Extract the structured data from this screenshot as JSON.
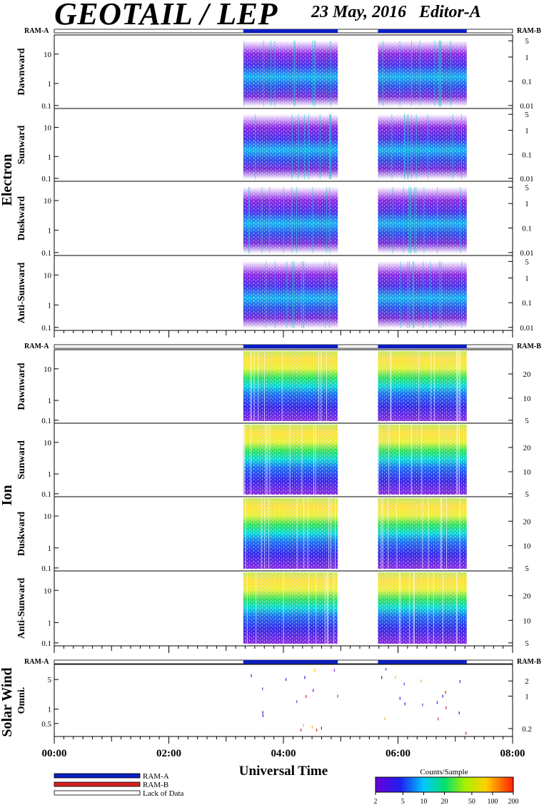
{
  "header": {
    "title": "GEOTAIL / LEP",
    "date": "23 May, 2016",
    "editor": "Editor-A"
  },
  "ram_labels": {
    "left": "RAM-A",
    "right": "RAM-B"
  },
  "time_axis": {
    "label": "Universal Time",
    "ticks": [
      "00:00",
      "02:00",
      "04:00",
      "06:00",
      "08:00"
    ],
    "range_hours": [
      0,
      8
    ]
  },
  "data_coverage_hours": [
    [
      3.3,
      4.95
    ],
    [
      5.65,
      7.2
    ]
  ],
  "groups": [
    {
      "name": "Electron",
      "panels": [
        "Dawnward",
        "Sunward",
        "Duskward",
        "Anti-Sunward"
      ],
      "left_ticks": [
        "10",
        "1",
        "0.1"
      ],
      "right_ticks": [
        "5",
        "1",
        "0.1",
        "0.01"
      ]
    },
    {
      "name": "Ion",
      "panels": [
        "Dawnward",
        "Sunward",
        "Duskward",
        "Anti-Sunward"
      ],
      "left_ticks": [
        "10",
        "1",
        "0.1"
      ],
      "right_ticks": [
        "20",
        "10",
        "5"
      ]
    },
    {
      "name": "Solar Wind",
      "panels": [
        "Omni."
      ],
      "left_ticks": [
        "5",
        "1",
        "0.5"
      ],
      "right_ticks": [
        "2",
        "1",
        "0.2"
      ]
    }
  ],
  "legend": {
    "items": [
      {
        "label": "RAM-A",
        "color": "#0b1fc2"
      },
      {
        "label": "RAM-B",
        "color": "#d42020"
      },
      {
        "label": "Lack of Data",
        "color": "#ffffff"
      }
    ]
  },
  "colorbar": {
    "title": "Counts/Sample",
    "ticks": [
      "2",
      "5",
      "10",
      "20",
      "50",
      "100",
      "200"
    ],
    "tick_values": [
      2,
      5,
      10,
      20,
      50,
      100,
      200
    ],
    "range": [
      2,
      200
    ]
  },
  "chart_data": {
    "type": "heatmap",
    "title": "GEOTAIL / LEP",
    "xlabel": "Universal Time",
    "xlim": [
      "00:00",
      "08:00"
    ],
    "scale": "log",
    "colorbar_label": "Counts/Sample",
    "series": [
      {
        "name": "Electron Dawnward",
        "coverage": [
          [
            "03:18",
            "04:57"
          ],
          [
            "05:39",
            "07:12"
          ]
        ]
      },
      {
        "name": "Electron Sunward",
        "coverage": [
          [
            "03:18",
            "04:57"
          ],
          [
            "05:39",
            "07:12"
          ]
        ]
      },
      {
        "name": "Electron Duskward",
        "coverage": [
          [
            "03:18",
            "04:57"
          ],
          [
            "05:39",
            "07:12"
          ]
        ]
      },
      {
        "name": "Electron Anti-Sunward",
        "coverage": [
          [
            "03:18",
            "04:57"
          ],
          [
            "05:39",
            "07:12"
          ]
        ]
      },
      {
        "name": "Ion Dawnward",
        "coverage": [
          [
            "03:18",
            "04:57"
          ],
          [
            "05:39",
            "07:12"
          ]
        ]
      },
      {
        "name": "Ion Sunward",
        "coverage": [
          [
            "03:18",
            "04:57"
          ],
          [
            "05:39",
            "07:12"
          ]
        ]
      },
      {
        "name": "Ion Duskward",
        "coverage": [
          [
            "03:18",
            "04:57"
          ],
          [
            "05:39",
            "07:12"
          ]
        ]
      },
      {
        "name": "Ion Anti-Sunward",
        "coverage": [
          [
            "03:18",
            "04:57"
          ],
          [
            "05:39",
            "07:12"
          ]
        ]
      },
      {
        "name": "Solar Wind Omni.",
        "coverage": [
          [
            "03:18",
            "04:57"
          ],
          [
            "05:39",
            "07:12"
          ]
        ]
      }
    ]
  }
}
